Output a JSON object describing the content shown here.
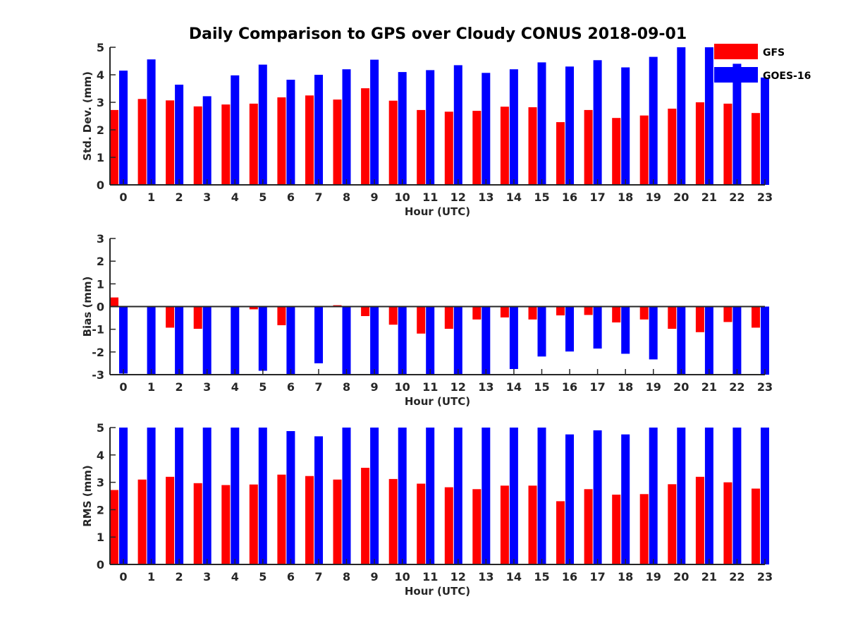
{
  "title": "Daily Comparison to GPS over Cloudy CONUS 2018-09-01",
  "legend": [
    {
      "name": "GFS",
      "color": "#ff0000"
    },
    {
      "name": "GOES-16",
      "color": "#0000ff"
    }
  ],
  "chart_data": [
    {
      "type": "bar",
      "xlabel": "Hour (UTC)",
      "ylabel": "Std. Dev. (mm)",
      "ylim": [
        0,
        5
      ],
      "yticks": [
        "0",
        "1",
        "2",
        "3",
        "4",
        "5"
      ],
      "categories": [
        "0",
        "1",
        "2",
        "3",
        "4",
        "5",
        "6",
        "7",
        "8",
        "9",
        "10",
        "11",
        "12",
        "13",
        "14",
        "15",
        "16",
        "17",
        "18",
        "19",
        "20",
        "21",
        "22",
        "23"
      ],
      "series": [
        {
          "name": "GFS",
          "color": "#ff0000",
          "values": [
            2.72,
            3.12,
            3.07,
            2.85,
            2.92,
            2.95,
            3.18,
            3.25,
            3.1,
            3.51,
            3.06,
            2.72,
            2.66,
            2.69,
            2.84,
            2.82,
            2.28,
            2.72,
            2.43,
            2.52,
            2.77,
            3.0,
            2.95,
            2.61
          ]
        },
        {
          "name": "GOES-16",
          "color": "#0000ff",
          "values": [
            4.15,
            4.56,
            3.64,
            3.22,
            3.98,
            4.37,
            3.82,
            4.0,
            4.2,
            4.55,
            4.1,
            4.17,
            4.35,
            4.07,
            4.2,
            4.45,
            4.3,
            4.53,
            4.27,
            4.65,
            5.0,
            5.0,
            4.4,
            3.9
          ]
        }
      ]
    },
    {
      "type": "bar",
      "xlabel": "Hour (UTC)",
      "ylabel": "Bias (mm)",
      "ylim": [
        -3,
        3
      ],
      "yticks": [
        "-3",
        "-2",
        "-1",
        "0",
        "1",
        "2",
        "3"
      ],
      "categories": [
        "0",
        "1",
        "2",
        "3",
        "4",
        "5",
        "6",
        "7",
        "8",
        "9",
        "10",
        "11",
        "12",
        "13",
        "14",
        "15",
        "16",
        "17",
        "18",
        "19",
        "20",
        "21",
        "22",
        "23"
      ],
      "series": [
        {
          "name": "GFS",
          "color": "#ff0000",
          "values": [
            0.4,
            0.03,
            -0.93,
            -0.98,
            0.02,
            -0.12,
            -0.82,
            0.0,
            0.06,
            -0.42,
            -0.8,
            -1.19,
            -0.98,
            -0.57,
            -0.48,
            -0.57,
            -0.39,
            -0.37,
            -0.7,
            -0.57,
            -0.98,
            -1.13,
            -0.68,
            -0.93
          ]
        },
        {
          "name": "GOES-16",
          "color": "#0000ff",
          "values": [
            -2.95,
            -3.0,
            -3.0,
            -3.0,
            -3.0,
            -2.83,
            -3.0,
            -2.5,
            -3.0,
            -3.0,
            -3.0,
            -3.0,
            -3.0,
            -3.0,
            -2.75,
            -2.2,
            -1.98,
            -1.85,
            -2.08,
            -2.33,
            -3.0,
            -3.0,
            -3.0,
            -3.0
          ]
        }
      ]
    },
    {
      "type": "bar",
      "xlabel": "Hour (UTC)",
      "ylabel": "RMS (mm)",
      "ylim": [
        0,
        5
      ],
      "yticks": [
        "0",
        "1",
        "2",
        "3",
        "4",
        "5"
      ],
      "categories": [
        "0",
        "1",
        "2",
        "3",
        "4",
        "5",
        "6",
        "7",
        "8",
        "9",
        "10",
        "11",
        "12",
        "13",
        "14",
        "15",
        "16",
        "17",
        "18",
        "19",
        "20",
        "21",
        "22",
        "23"
      ],
      "series": [
        {
          "name": "GFS",
          "color": "#ff0000",
          "values": [
            2.72,
            3.1,
            3.2,
            2.97,
            2.9,
            2.92,
            3.28,
            3.23,
            3.1,
            3.53,
            3.12,
            2.95,
            2.82,
            2.75,
            2.88,
            2.88,
            2.31,
            2.75,
            2.55,
            2.57,
            2.93,
            3.2,
            3.0,
            2.77
          ]
        },
        {
          "name": "GOES-16",
          "color": "#0000ff",
          "values": [
            5.0,
            5.0,
            5.0,
            5.0,
            5.0,
            5.0,
            4.87,
            4.68,
            5.0,
            5.0,
            5.0,
            5.0,
            5.0,
            5.0,
            5.0,
            5.0,
            4.75,
            4.9,
            4.75,
            5.0,
            5.0,
            5.0,
            5.0,
            5.0
          ]
        }
      ]
    }
  ]
}
